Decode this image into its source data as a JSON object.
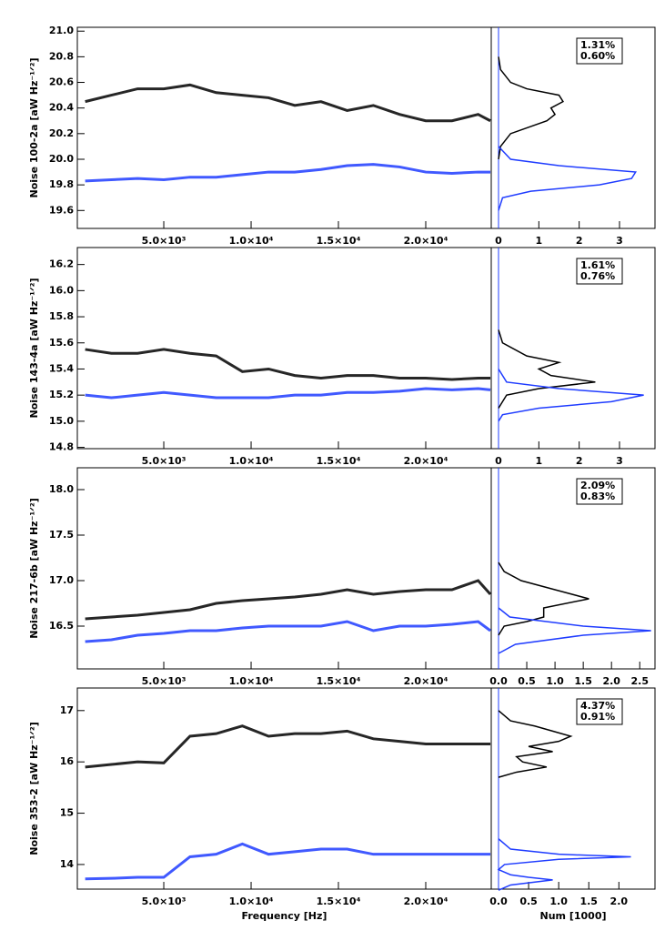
{
  "chart_data": [
    {
      "type": "line",
      "ylabel": "Noise 100-2a [aW Hz⁻¹ᐟ²]",
      "x": [
        500,
        2000,
        3500,
        5000,
        6500,
        8000,
        9500,
        11000,
        12500,
        14000,
        15500,
        17000,
        18500,
        20000,
        21500,
        23000,
        23700
      ],
      "series": [
        {
          "color": "#000000",
          "values": [
            20.45,
            20.5,
            20.55,
            20.55,
            20.58,
            20.52,
            20.5,
            20.48,
            20.42,
            20.45,
            20.38,
            20.42,
            20.35,
            20.3,
            20.3,
            20.35,
            20.3
          ]
        },
        {
          "color": "#1f3cff",
          "values": [
            19.83,
            19.84,
            19.85,
            19.84,
            19.86,
            19.86,
            19.88,
            19.9,
            19.9,
            19.92,
            19.95,
            19.96,
            19.94,
            19.9,
            19.89,
            19.9,
            19.9
          ]
        }
      ],
      "xlim": [
        50,
        23750
      ],
      "ylim": [
        19.46,
        21.03
      ],
      "xticks": [
        {
          "value": 5000,
          "label": "5.0×10³"
        },
        {
          "value": 10000,
          "label": "1.0×10⁴"
        },
        {
          "value": 15000,
          "label": "1.5×10⁴"
        },
        {
          "value": 20000,
          "label": "2.0×10⁴"
        }
      ],
      "yticks": [
        {
          "value": 19.6,
          "label": "19.6"
        },
        {
          "value": 19.8,
          "label": "19.8"
        },
        {
          "value": 20.0,
          "label": "20.0"
        },
        {
          "value": 20.2,
          "label": "20.2"
        },
        {
          "value": 20.4,
          "label": "20.4"
        },
        {
          "value": 20.6,
          "label": "20.6"
        },
        {
          "value": 20.8,
          "label": "20.8"
        },
        {
          "value": 21.0,
          "label": "21.0"
        }
      ]
    },
    {
      "type": "histogram",
      "annotations": [
        "1.31%",
        "0.60%"
      ],
      "series": [
        {
          "color": "#000000",
          "y": [
            20.0,
            20.1,
            20.2,
            20.3,
            20.35,
            20.4,
            20.45,
            20.5,
            20.55,
            20.6,
            20.7,
            20.8
          ],
          "values": [
            0,
            0.05,
            0.3,
            1.2,
            1.4,
            1.3,
            1.6,
            1.5,
            0.7,
            0.3,
            0.05,
            0
          ]
        },
        {
          "color": "#1f3cff",
          "y": [
            19.6,
            19.7,
            19.75,
            19.8,
            19.85,
            19.9,
            19.95,
            20.0,
            20.1
          ],
          "values": [
            0,
            0.1,
            0.8,
            2.5,
            3.3,
            3.4,
            1.5,
            0.3,
            0
          ]
        }
      ],
      "xlim": [
        0,
        3.88
      ],
      "ylim": [
        19.46,
        21.03
      ],
      "xticks": [
        0,
        1,
        2,
        3
      ]
    },
    {
      "type": "line",
      "ylabel": "Noise 143-4a [aW Hz⁻¹ᐟ²]",
      "x": [
        500,
        2000,
        3500,
        5000,
        6500,
        8000,
        9500,
        11000,
        12500,
        14000,
        15500,
        17000,
        18500,
        20000,
        21500,
        23000,
        23700
      ],
      "series": [
        {
          "color": "#000000",
          "values": [
            15.55,
            15.52,
            15.52,
            15.55,
            15.52,
            15.5,
            15.38,
            15.4,
            15.35,
            15.33,
            15.35,
            15.35,
            15.33,
            15.33,
            15.32,
            15.33,
            15.33
          ]
        },
        {
          "color": "#1f3cff",
          "values": [
            15.2,
            15.18,
            15.2,
            15.22,
            15.2,
            15.18,
            15.18,
            15.18,
            15.2,
            15.2,
            15.22,
            15.22,
            15.23,
            15.25,
            15.24,
            15.25,
            15.24
          ]
        }
      ],
      "xlim": [
        50,
        23750
      ],
      "ylim": [
        14.79,
        16.33
      ],
      "xticks": [
        {
          "value": 5000,
          "label": "5.0×10³"
        },
        {
          "value": 10000,
          "label": "1.0×10⁴"
        },
        {
          "value": 15000,
          "label": "1.5×10⁴"
        },
        {
          "value": 20000,
          "label": "2.0×10⁴"
        }
      ],
      "yticks": [
        {
          "value": 14.8,
          "label": "14.8"
        },
        {
          "value": 15.0,
          "label": "15.0"
        },
        {
          "value": 15.2,
          "label": "15.2"
        },
        {
          "value": 15.4,
          "label": "15.4"
        },
        {
          "value": 15.6,
          "label": "15.6"
        },
        {
          "value": 15.8,
          "label": "15.8"
        },
        {
          "value": 16.0,
          "label": "16.0"
        },
        {
          "value": 16.2,
          "label": "16.2"
        }
      ]
    },
    {
      "type": "histogram",
      "annotations": [
        "1.61%",
        "0.76%"
      ],
      "series": [
        {
          "color": "#000000",
          "y": [
            15.1,
            15.2,
            15.25,
            15.3,
            15.35,
            15.4,
            15.45,
            15.5,
            15.6,
            15.7
          ],
          "values": [
            0,
            0.2,
            1.0,
            2.4,
            1.3,
            1.0,
            1.5,
            0.7,
            0.1,
            0
          ]
        },
        {
          "color": "#1f3cff",
          "y": [
            15.0,
            15.05,
            15.1,
            15.15,
            15.2,
            15.25,
            15.3,
            15.4
          ],
          "values": [
            0,
            0.1,
            1.0,
            2.8,
            3.6,
            1.5,
            0.2,
            0
          ]
        }
      ],
      "xlim": [
        0,
        3.88
      ],
      "ylim": [
        14.79,
        16.33
      ],
      "xticks": [
        0,
        1,
        2,
        3
      ]
    },
    {
      "type": "line",
      "ylabel": "Noise 217-6b [aW Hz⁻¹ᐟ²]",
      "x": [
        500,
        2000,
        3500,
        5000,
        6500,
        8000,
        9500,
        11000,
        12500,
        14000,
        15500,
        17000,
        18500,
        20000,
        21500,
        23000,
        23700
      ],
      "series": [
        {
          "color": "#000000",
          "values": [
            16.58,
            16.6,
            16.62,
            16.65,
            16.68,
            16.75,
            16.78,
            16.8,
            16.82,
            16.85,
            16.9,
            16.85,
            16.88,
            16.9,
            16.9,
            17.0,
            16.85
          ]
        },
        {
          "color": "#1f3cff",
          "values": [
            16.33,
            16.35,
            16.4,
            16.42,
            16.45,
            16.45,
            16.48,
            16.5,
            16.5,
            16.5,
            16.55,
            16.45,
            16.5,
            16.5,
            16.52,
            16.55,
            16.45
          ]
        }
      ],
      "xlim": [
        50,
        23750
      ],
      "ylim": [
        16.03,
        18.24
      ],
      "xticks": [
        {
          "value": 5000,
          "label": "5.0×10³"
        },
        {
          "value": 10000,
          "label": "1.0×10⁴"
        },
        {
          "value": 15000,
          "label": "1.5×10⁴"
        },
        {
          "value": 20000,
          "label": "2.0×10⁴"
        }
      ],
      "yticks": [
        {
          "value": 16.5,
          "label": "16.5"
        },
        {
          "value": 17.0,
          "label": "17.0"
        },
        {
          "value": 17.5,
          "label": "17.5"
        },
        {
          "value": 18.0,
          "label": "18.0"
        }
      ]
    },
    {
      "type": "histogram",
      "annotations": [
        "2.09%",
        "0.83%"
      ],
      "series": [
        {
          "color": "#000000",
          "y": [
            16.4,
            16.5,
            16.55,
            16.6,
            16.7,
            16.8,
            16.9,
            17.0,
            17.1,
            17.2
          ],
          "values": [
            0,
            0.1,
            0.5,
            0.8,
            0.8,
            1.6,
            1.0,
            0.4,
            0.1,
            0
          ]
        },
        {
          "color": "#1f3cff",
          "y": [
            16.2,
            16.3,
            16.4,
            16.45,
            16.5,
            16.6,
            16.7
          ],
          "values": [
            0,
            0.3,
            1.5,
            2.7,
            1.5,
            0.2,
            0
          ]
        }
      ],
      "xlim": [
        0,
        2.77
      ],
      "ylim": [
        16.03,
        18.24
      ],
      "xticks": [
        {
          "value": 0,
          "label": "0.0"
        },
        0.5,
        {
          "value": 1,
          "label": "1.0"
        },
        1.5,
        {
          "value": 2,
          "label": "2.0"
        },
        2.5
      ]
    },
    {
      "type": "line",
      "ylabel": "Noise 353-2 [aW Hz⁻¹ᐟ²]",
      "xlabel": "Frequency [Hz]",
      "x": [
        500,
        2000,
        3500,
        5000,
        6500,
        8000,
        9500,
        11000,
        12500,
        14000,
        15500,
        17000,
        18500,
        20000,
        21500,
        23000,
        23700
      ],
      "series": [
        {
          "color": "#000000",
          "values": [
            15.9,
            15.95,
            16.0,
            15.98,
            16.5,
            16.55,
            16.7,
            16.5,
            16.55,
            16.55,
            16.6,
            16.45,
            16.4,
            16.35,
            16.35,
            16.35,
            16.35
          ]
        },
        {
          "color": "#1f3cff",
          "values": [
            13.72,
            13.73,
            13.75,
            13.75,
            14.15,
            14.2,
            14.4,
            14.2,
            14.25,
            14.3,
            14.3,
            14.2,
            14.2,
            14.2,
            14.2,
            14.2,
            14.2
          ]
        }
      ],
      "xlim": [
        50,
        23750
      ],
      "ylim": [
        13.52,
        17.44
      ],
      "xticks": [
        {
          "value": 5000,
          "label": "5.0×10³"
        },
        {
          "value": 10000,
          "label": "1.0×10⁴"
        },
        {
          "value": 15000,
          "label": "1.5×10⁴"
        },
        {
          "value": 20000,
          "label": "2.0×10⁴"
        }
      ],
      "yticks": [
        14,
        15,
        16,
        17
      ]
    },
    {
      "type": "histogram",
      "annotations": [
        "4.37%",
        "0.91%"
      ],
      "xlabel": "Num [1000]",
      "series": [
        {
          "color": "#000000",
          "y": [
            15.7,
            15.8,
            15.9,
            16.0,
            16.1,
            16.2,
            16.3,
            16.4,
            16.5,
            16.6,
            16.7,
            16.8,
            17.0
          ],
          "values": [
            0,
            0.3,
            0.8,
            0.4,
            0.3,
            0.9,
            0.5,
            1.0,
            1.2,
            0.9,
            0.6,
            0.2,
            0
          ]
        },
        {
          "color": "#1f3cff",
          "y": [
            13.5,
            13.6,
            13.7,
            13.75,
            13.8,
            13.9,
            14.0,
            14.1,
            14.15,
            14.2,
            14.3,
            14.5
          ],
          "values": [
            0,
            0.2,
            0.9,
            0.5,
            0.2,
            0,
            0.1,
            1.0,
            2.2,
            1.0,
            0.2,
            0
          ]
        }
      ],
      "xlim": [
        0,
        2.6
      ],
      "ylim": [
        13.52,
        17.44
      ],
      "xticks": [
        {
          "value": 0,
          "label": "0.0"
        },
        0.5,
        {
          "value": 1,
          "label": "1.0"
        },
        1.5,
        {
          "value": 2,
          "label": "2.0"
        }
      ]
    }
  ]
}
